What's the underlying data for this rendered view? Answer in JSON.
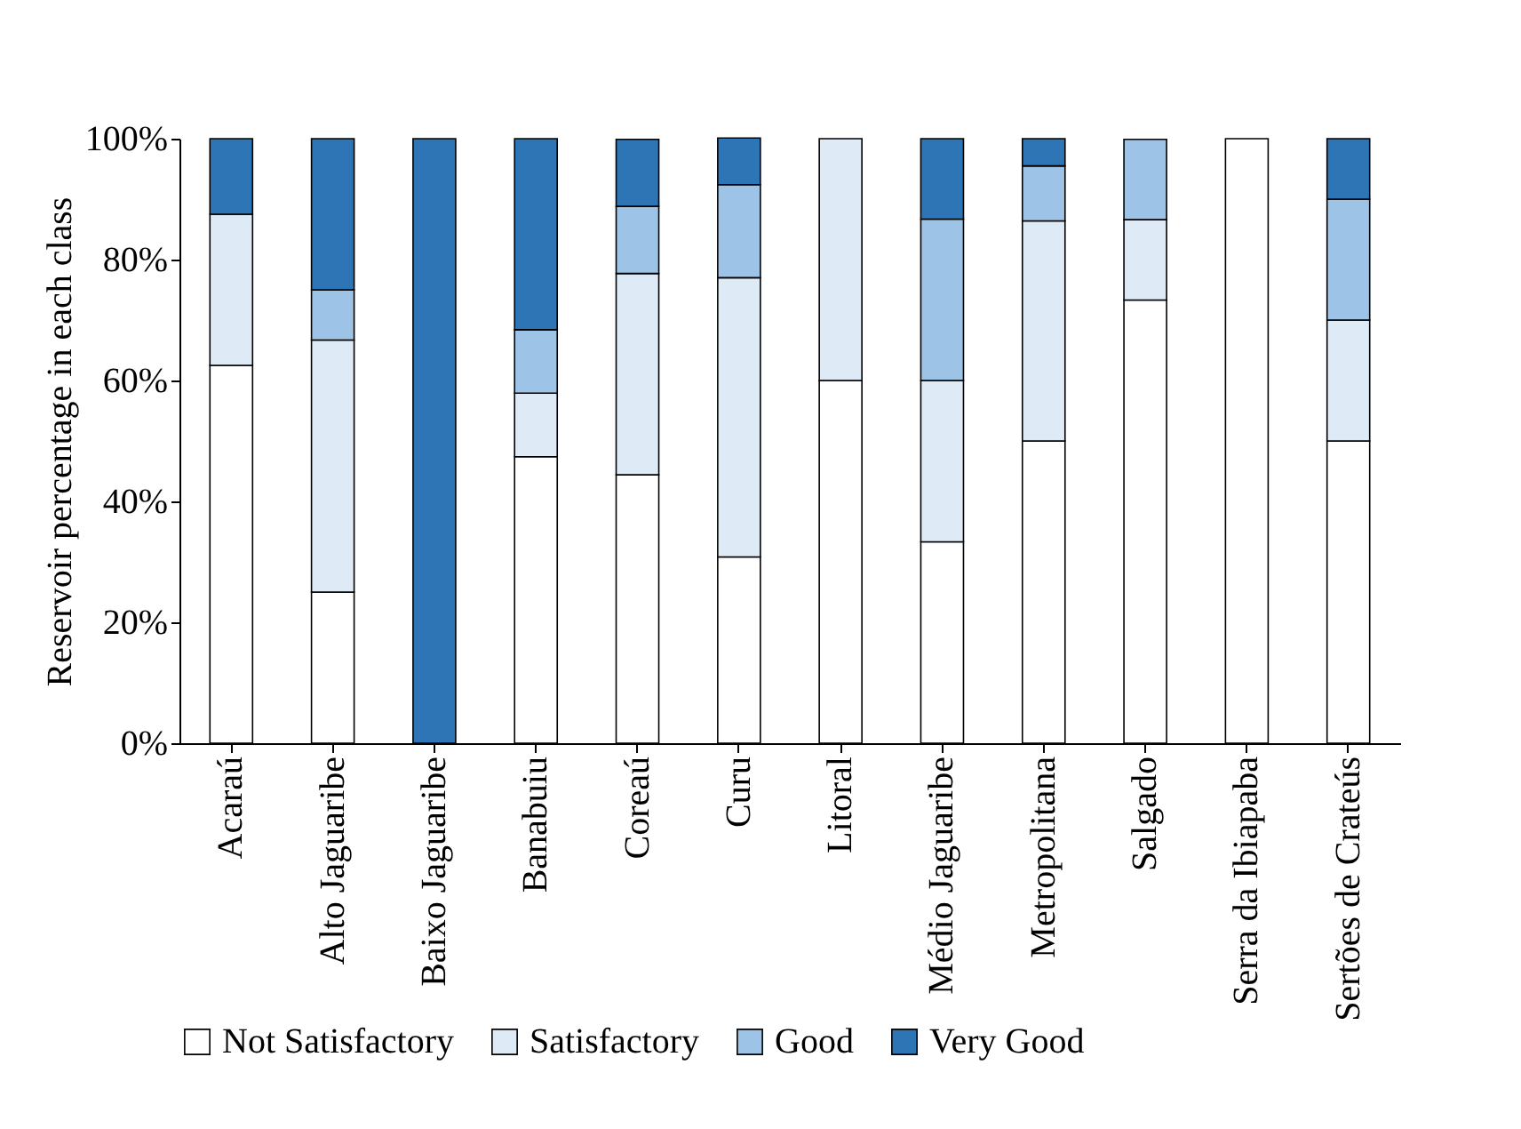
{
  "chart_data": {
    "type": "bar",
    "stacked": true,
    "ylabel": "Reservoir percentage in each class",
    "categories": [
      "Acaraú",
      "Alto Jaguaribe",
      "Baixo Jaguaribe",
      "Banabuiu",
      "Coreaú",
      "Curu",
      "Litoral",
      "Médio Jaguaribe",
      "Metropolitana",
      "Salgado",
      "Serra da Ibiapaba",
      "Sertões de Crateús"
    ],
    "series": [
      {
        "name": "Not Satisfactory",
        "color": "#ffffff",
        "values": [
          62.5,
          25,
          0,
          47.4,
          44.4,
          30.8,
          60,
          33.3,
          50,
          73.3,
          100,
          50
        ]
      },
      {
        "name": "Satisfactory",
        "color": "#deebf7",
        "values": [
          25,
          41.7,
          0,
          10.5,
          33.3,
          46.2,
          40,
          26.7,
          36.4,
          13.3,
          0,
          20
        ]
      },
      {
        "name": "Good",
        "color": "#9dc3e6",
        "values": [
          0,
          8.3,
          0,
          10.5,
          11.1,
          15.4,
          0,
          26.7,
          9.1,
          13.3,
          0,
          20
        ]
      },
      {
        "name": "Very Good",
        "color": "#2e75b6",
        "values": [
          12.5,
          25,
          100,
          31.6,
          11.1,
          7.7,
          0,
          13.3,
          4.5,
          0,
          0,
          10
        ]
      }
    ],
    "ylim": [
      0,
      100
    ],
    "yticks": [
      {
        "value": 0,
        "label": "0%"
      },
      {
        "value": 20,
        "label": "20%"
      },
      {
        "value": 40,
        "label": "40%"
      },
      {
        "value": 60,
        "label": "60%"
      },
      {
        "value": 80,
        "label": "80%"
      },
      {
        "value": 100,
        "label": "100%"
      }
    ],
    "legend": "bottom",
    "grid": false
  }
}
